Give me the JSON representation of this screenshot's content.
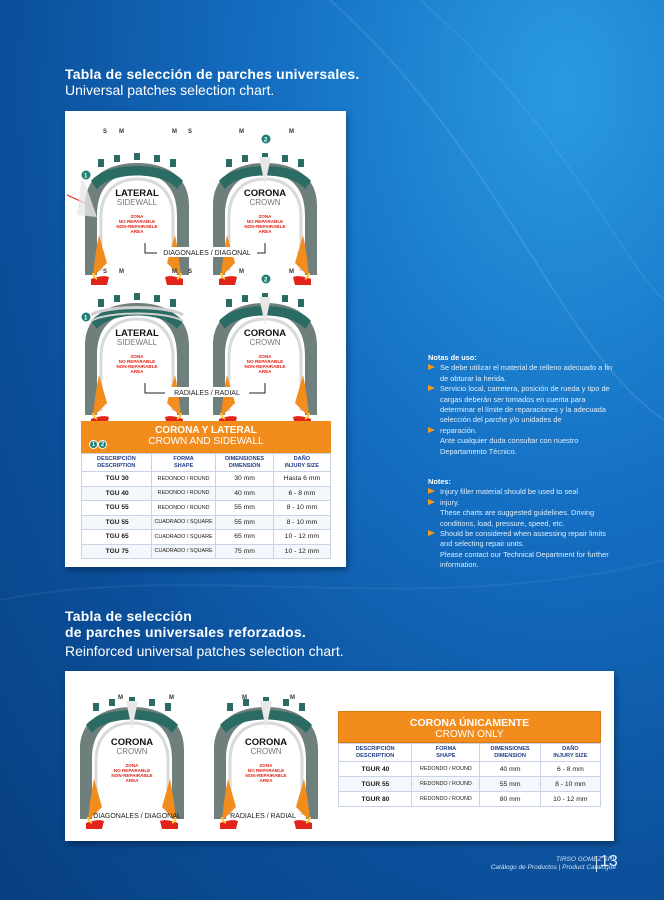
{
  "section1": {
    "title_es": "Tabla de selección de parches universales.",
    "title_en": "Universal patches selection chart."
  },
  "section2": {
    "title_es_line1": "Tabla de selección",
    "title_es_line2": "de parches universales reforzados.",
    "title_en": "Reinforced universal patches selection chart."
  },
  "tire_labels": {
    "s": "S",
    "m": "M",
    "lateral": "LATERAL",
    "sidewall": "SIDEWALL",
    "corona": "CORONA",
    "crown": "CROWN",
    "zona": "ZONA",
    "no_reparable": "NO REPARABLE",
    "non_repairable": "NON-REPAIRABLE",
    "area": "AREA",
    "diagonales": "DIAGONALES / DIAGONAL",
    "radiales": "RADIALES / RADIAL",
    "badge1": "1",
    "badge2": "2"
  },
  "table1": {
    "title_es": "CORONA Y LATERAL",
    "title_en": "CROWN AND SIDEWALL",
    "badges": [
      "1",
      "2"
    ],
    "headers": [
      {
        "es": "DESCRIPCIÓN",
        "en": "DESCRIPTION"
      },
      {
        "es": "FORMA",
        "en": "SHAPE"
      },
      {
        "es": "DIMENSIONES",
        "en": "DIMENSION"
      },
      {
        "es": "DAÑO",
        "en": "INJURY SIZE"
      }
    ],
    "rows": [
      [
        "TGU 30",
        "REDONDO / ROUND",
        "30 mm",
        "Hasta 6 mm"
      ],
      [
        "TGU 40",
        "REDONDO / ROUND",
        "40 mm",
        "6 - 8 mm"
      ],
      [
        "TGU 55",
        "REDONDO / ROUND",
        "55 mm",
        "8 - 10 mm"
      ],
      [
        "TGU 55",
        "CUADRADO / SQUARE",
        "55 mm",
        "8 - 10 mm"
      ],
      [
        "TGU 65",
        "CUADRADO / SQUARE",
        "65 mm",
        "10 - 12 mm"
      ],
      [
        "TGU 75",
        "CUADRADO / SQUARE",
        "75 mm",
        "10 - 12 mm"
      ]
    ]
  },
  "table2": {
    "title_es": "CORONA ÚNICAMENTE",
    "title_en": "CROWN ONLY",
    "headers": [
      {
        "es": "DESCRIPCIÓN",
        "en": "DESCRIPTION"
      },
      {
        "es": "FORMA",
        "en": "SHAPE"
      },
      {
        "es": "DIMENSIONES",
        "en": "DIMENSION"
      },
      {
        "es": "DAÑO",
        "en": "INJURY SIZE"
      }
    ],
    "rows": [
      [
        "TGUR 40",
        "REDONDO / ROUND",
        "40 mm",
        "6 - 8 mm"
      ],
      [
        "TGUR 55",
        "REDONDO / ROUND",
        "55 mm",
        "8 - 10 mm"
      ],
      [
        "TGUR 80",
        "REDONDO / ROUND",
        "80 mm",
        "10 - 12 mm"
      ]
    ]
  },
  "notes_es": {
    "heading": "Notas de uso:",
    "items": [
      "Se debe utilizar el material de relleno adecuado a fin de obturar la herida.",
      "Servicio local, carretera, posición de rueda y tipo de cargas deberán ser tomados en cuenta para determinar el límite de reparaciones y la adecuada selección del parche y/o unidades de",
      "reparación."
    ],
    "extra": "Ante cualquier duda consultar con nuestro Departamento Técnico."
  },
  "notes_en": {
    "heading": "Notes:",
    "items": [
      "Injury filler material should be used to seal",
      "injury.",
      "Should be considered when assessing repair limits and selecting repair units."
    ],
    "extra1": "These charts are suggested guidelines. Driving conditions, load, pressure, speed, etc.",
    "extra2": "Please contact our Technical Department for further information."
  },
  "footer": {
    "company": "TIRSO GOMEZ SRL",
    "catalogue": "Catálogo de Productos | Product Catalogue",
    "page": "13"
  },
  "colors": {
    "orange": "#f28c1d",
    "teal": "#1e7f72",
    "navy": "#233e8b",
    "red": "#e2231a"
  }
}
